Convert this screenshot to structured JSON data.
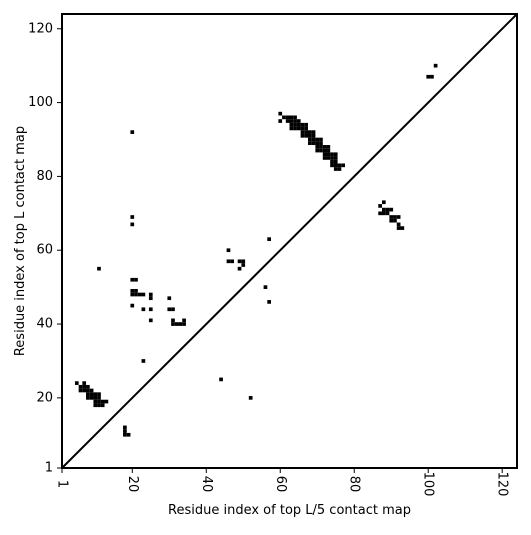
{
  "chart_data": {
    "type": "heatmap",
    "title": "",
    "xlabel": "Residue index of top L/5 contact map",
    "ylabel": "Residue index of top L contact map",
    "xlim": [
      1,
      124
    ],
    "ylim": [
      1,
      124
    ],
    "x_ticks": [
      "1",
      "20",
      "40",
      "60",
      "80",
      "100",
      "120"
    ],
    "x_tick_values": [
      1,
      20,
      40,
      60,
      80,
      100,
      120
    ],
    "y_ticks": [
      "1",
      "20",
      "40",
      "60",
      "80",
      "100",
      "120"
    ],
    "y_tick_values": [
      1,
      20,
      40,
      60,
      80,
      100,
      120
    ],
    "diagonal": true,
    "grid": false,
    "mark_color": "#000000",
    "contacts": [
      [
        102,
        110
      ],
      [
        101,
        107
      ],
      [
        100,
        107
      ],
      [
        60,
        97
      ],
      [
        60,
        95
      ],
      [
        61,
        96
      ],
      [
        62,
        96
      ],
      [
        62,
        95
      ],
      [
        63,
        96
      ],
      [
        63,
        95
      ],
      [
        63,
        94
      ],
      [
        63,
        93
      ],
      [
        64,
        96
      ],
      [
        64,
        95
      ],
      [
        64,
        94
      ],
      [
        64,
        93
      ],
      [
        65,
        95
      ],
      [
        65,
        94
      ],
      [
        65,
        93
      ],
      [
        66,
        94
      ],
      [
        66,
        93
      ],
      [
        66,
        92
      ],
      [
        66,
        91
      ],
      [
        67,
        94
      ],
      [
        67,
        93
      ],
      [
        67,
        92
      ],
      [
        67,
        91
      ],
      [
        68,
        92
      ],
      [
        68,
        91
      ],
      [
        68,
        90
      ],
      [
        68,
        89
      ],
      [
        69,
        92
      ],
      [
        69,
        91
      ],
      [
        69,
        90
      ],
      [
        69,
        89
      ],
      [
        70,
        90
      ],
      [
        70,
        89
      ],
      [
        70,
        88
      ],
      [
        70,
        87
      ],
      [
        71,
        90
      ],
      [
        71,
        89
      ],
      [
        71,
        88
      ],
      [
        71,
        87
      ],
      [
        72,
        88
      ],
      [
        72,
        87
      ],
      [
        72,
        86
      ],
      [
        72,
        85
      ],
      [
        73,
        88
      ],
      [
        73,
        87
      ],
      [
        73,
        86
      ],
      [
        73,
        85
      ],
      [
        74,
        86
      ],
      [
        74,
        85
      ],
      [
        74,
        84
      ],
      [
        74,
        83
      ],
      [
        75,
        86
      ],
      [
        75,
        85
      ],
      [
        75,
        84
      ],
      [
        75,
        83
      ],
      [
        75,
        82
      ],
      [
        76,
        83
      ],
      [
        76,
        82
      ],
      [
        77,
        83
      ],
      [
        87,
        72
      ],
      [
        87,
        70
      ],
      [
        88,
        73
      ],
      [
        88,
        71
      ],
      [
        88,
        70
      ],
      [
        89,
        71
      ],
      [
        89,
        70
      ],
      [
        90,
        71
      ],
      [
        90,
        69
      ],
      [
        90,
        68
      ],
      [
        91,
        69
      ],
      [
        91,
        68
      ],
      [
        92,
        69
      ],
      [
        92,
        67
      ],
      [
        92,
        66
      ],
      [
        93,
        66
      ],
      [
        57,
        63
      ],
      [
        56,
        50
      ],
      [
        57,
        46
      ],
      [
        46,
        60
      ],
      [
        46,
        57
      ],
      [
        47,
        57
      ],
      [
        49,
        57
      ],
      [
        49,
        55
      ],
      [
        50,
        57
      ],
      [
        50,
        56
      ],
      [
        20,
        92
      ],
      [
        20,
        69
      ],
      [
        20,
        67
      ],
      [
        20,
        52
      ],
      [
        21,
        52
      ],
      [
        20,
        49
      ],
      [
        20,
        48
      ],
      [
        21,
        49
      ],
      [
        21,
        48
      ],
      [
        22,
        48
      ],
      [
        23,
        48
      ],
      [
        20,
        45
      ],
      [
        23,
        44
      ],
      [
        25,
        48
      ],
      [
        25,
        47
      ],
      [
        25,
        44
      ],
      [
        25,
        41
      ],
      [
        30,
        47
      ],
      [
        30,
        44
      ],
      [
        31,
        44
      ],
      [
        31,
        41
      ],
      [
        31,
        40
      ],
      [
        32,
        40
      ],
      [
        33,
        40
      ],
      [
        34,
        41
      ],
      [
        34,
        40
      ],
      [
        11,
        55
      ],
      [
        23,
        30
      ],
      [
        44,
        25
      ],
      [
        52,
        20
      ],
      [
        5,
        24
      ],
      [
        6,
        23
      ],
      [
        7,
        24
      ],
      [
        7,
        23
      ],
      [
        6,
        22
      ],
      [
        7,
        22
      ],
      [
        8,
        23
      ],
      [
        8,
        22
      ],
      [
        9,
        22
      ],
      [
        8,
        21
      ],
      [
        9,
        21
      ],
      [
        10,
        21
      ],
      [
        11,
        21
      ],
      [
        8,
        20
      ],
      [
        9,
        20
      ],
      [
        10,
        20
      ],
      [
        11,
        20
      ],
      [
        10,
        19
      ],
      [
        11,
        19
      ],
      [
        12,
        19
      ],
      [
        13,
        19
      ],
      [
        10,
        18
      ],
      [
        11,
        18
      ],
      [
        12,
        18
      ],
      [
        18,
        12
      ],
      [
        18,
        11
      ],
      [
        18,
        10
      ],
      [
        19,
        10
      ]
    ]
  }
}
